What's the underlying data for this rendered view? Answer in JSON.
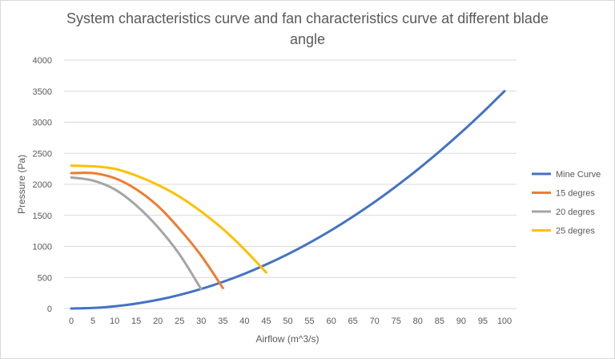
{
  "chart_data": {
    "type": "line",
    "title": "System characteristics curve and fan characteristics curve at different blade angle",
    "title_line1": "System characteristics curve and fan characteristics curve at different blade",
    "title_line2": "angle",
    "xlabel": "Airflow (m^3/s)",
    "ylabel": "Pressure (Pa)",
    "categories": [
      0,
      5,
      10,
      15,
      20,
      25,
      30,
      35,
      40,
      45,
      50,
      55,
      60,
      65,
      70,
      75,
      80,
      85,
      90,
      95,
      100
    ],
    "ylim": [
      0,
      4000
    ],
    "yticks": [
      0,
      500,
      1000,
      1500,
      2000,
      2500,
      3000,
      3500,
      4000
    ],
    "grid": true,
    "legend_position": "right",
    "series": [
      {
        "name": "Mine Curve",
        "color": "#4472C4",
        "values": [
          0,
          9,
          35,
          79,
          140,
          219,
          315,
          429,
          560,
          709,
          875,
          1059,
          1260,
          1479,
          1715,
          1969,
          2240,
          2529,
          2835,
          3159,
          3500
        ]
      },
      {
        "name": "15 degres",
        "color": "#ED7D31",
        "values": [
          2180,
          2180,
          2100,
          1920,
          1650,
          1280,
          850,
          330,
          null,
          null,
          null,
          null,
          null,
          null,
          null,
          null,
          null,
          null,
          null,
          null,
          null
        ]
      },
      {
        "name": "20 degres",
        "color": "#A5A5A5",
        "values": [
          2110,
          2060,
          1920,
          1660,
          1310,
          870,
          310,
          null,
          null,
          null,
          null,
          null,
          null,
          null,
          null,
          null,
          null,
          null,
          null,
          null,
          null
        ]
      },
      {
        "name": "25 degres",
        "color": "#FFC000",
        "values": [
          2300,
          2290,
          2250,
          2140,
          1990,
          1800,
          1560,
          1280,
          950,
          580,
          null,
          null,
          null,
          null,
          null,
          null,
          null,
          null,
          null,
          null,
          null
        ]
      }
    ]
  }
}
